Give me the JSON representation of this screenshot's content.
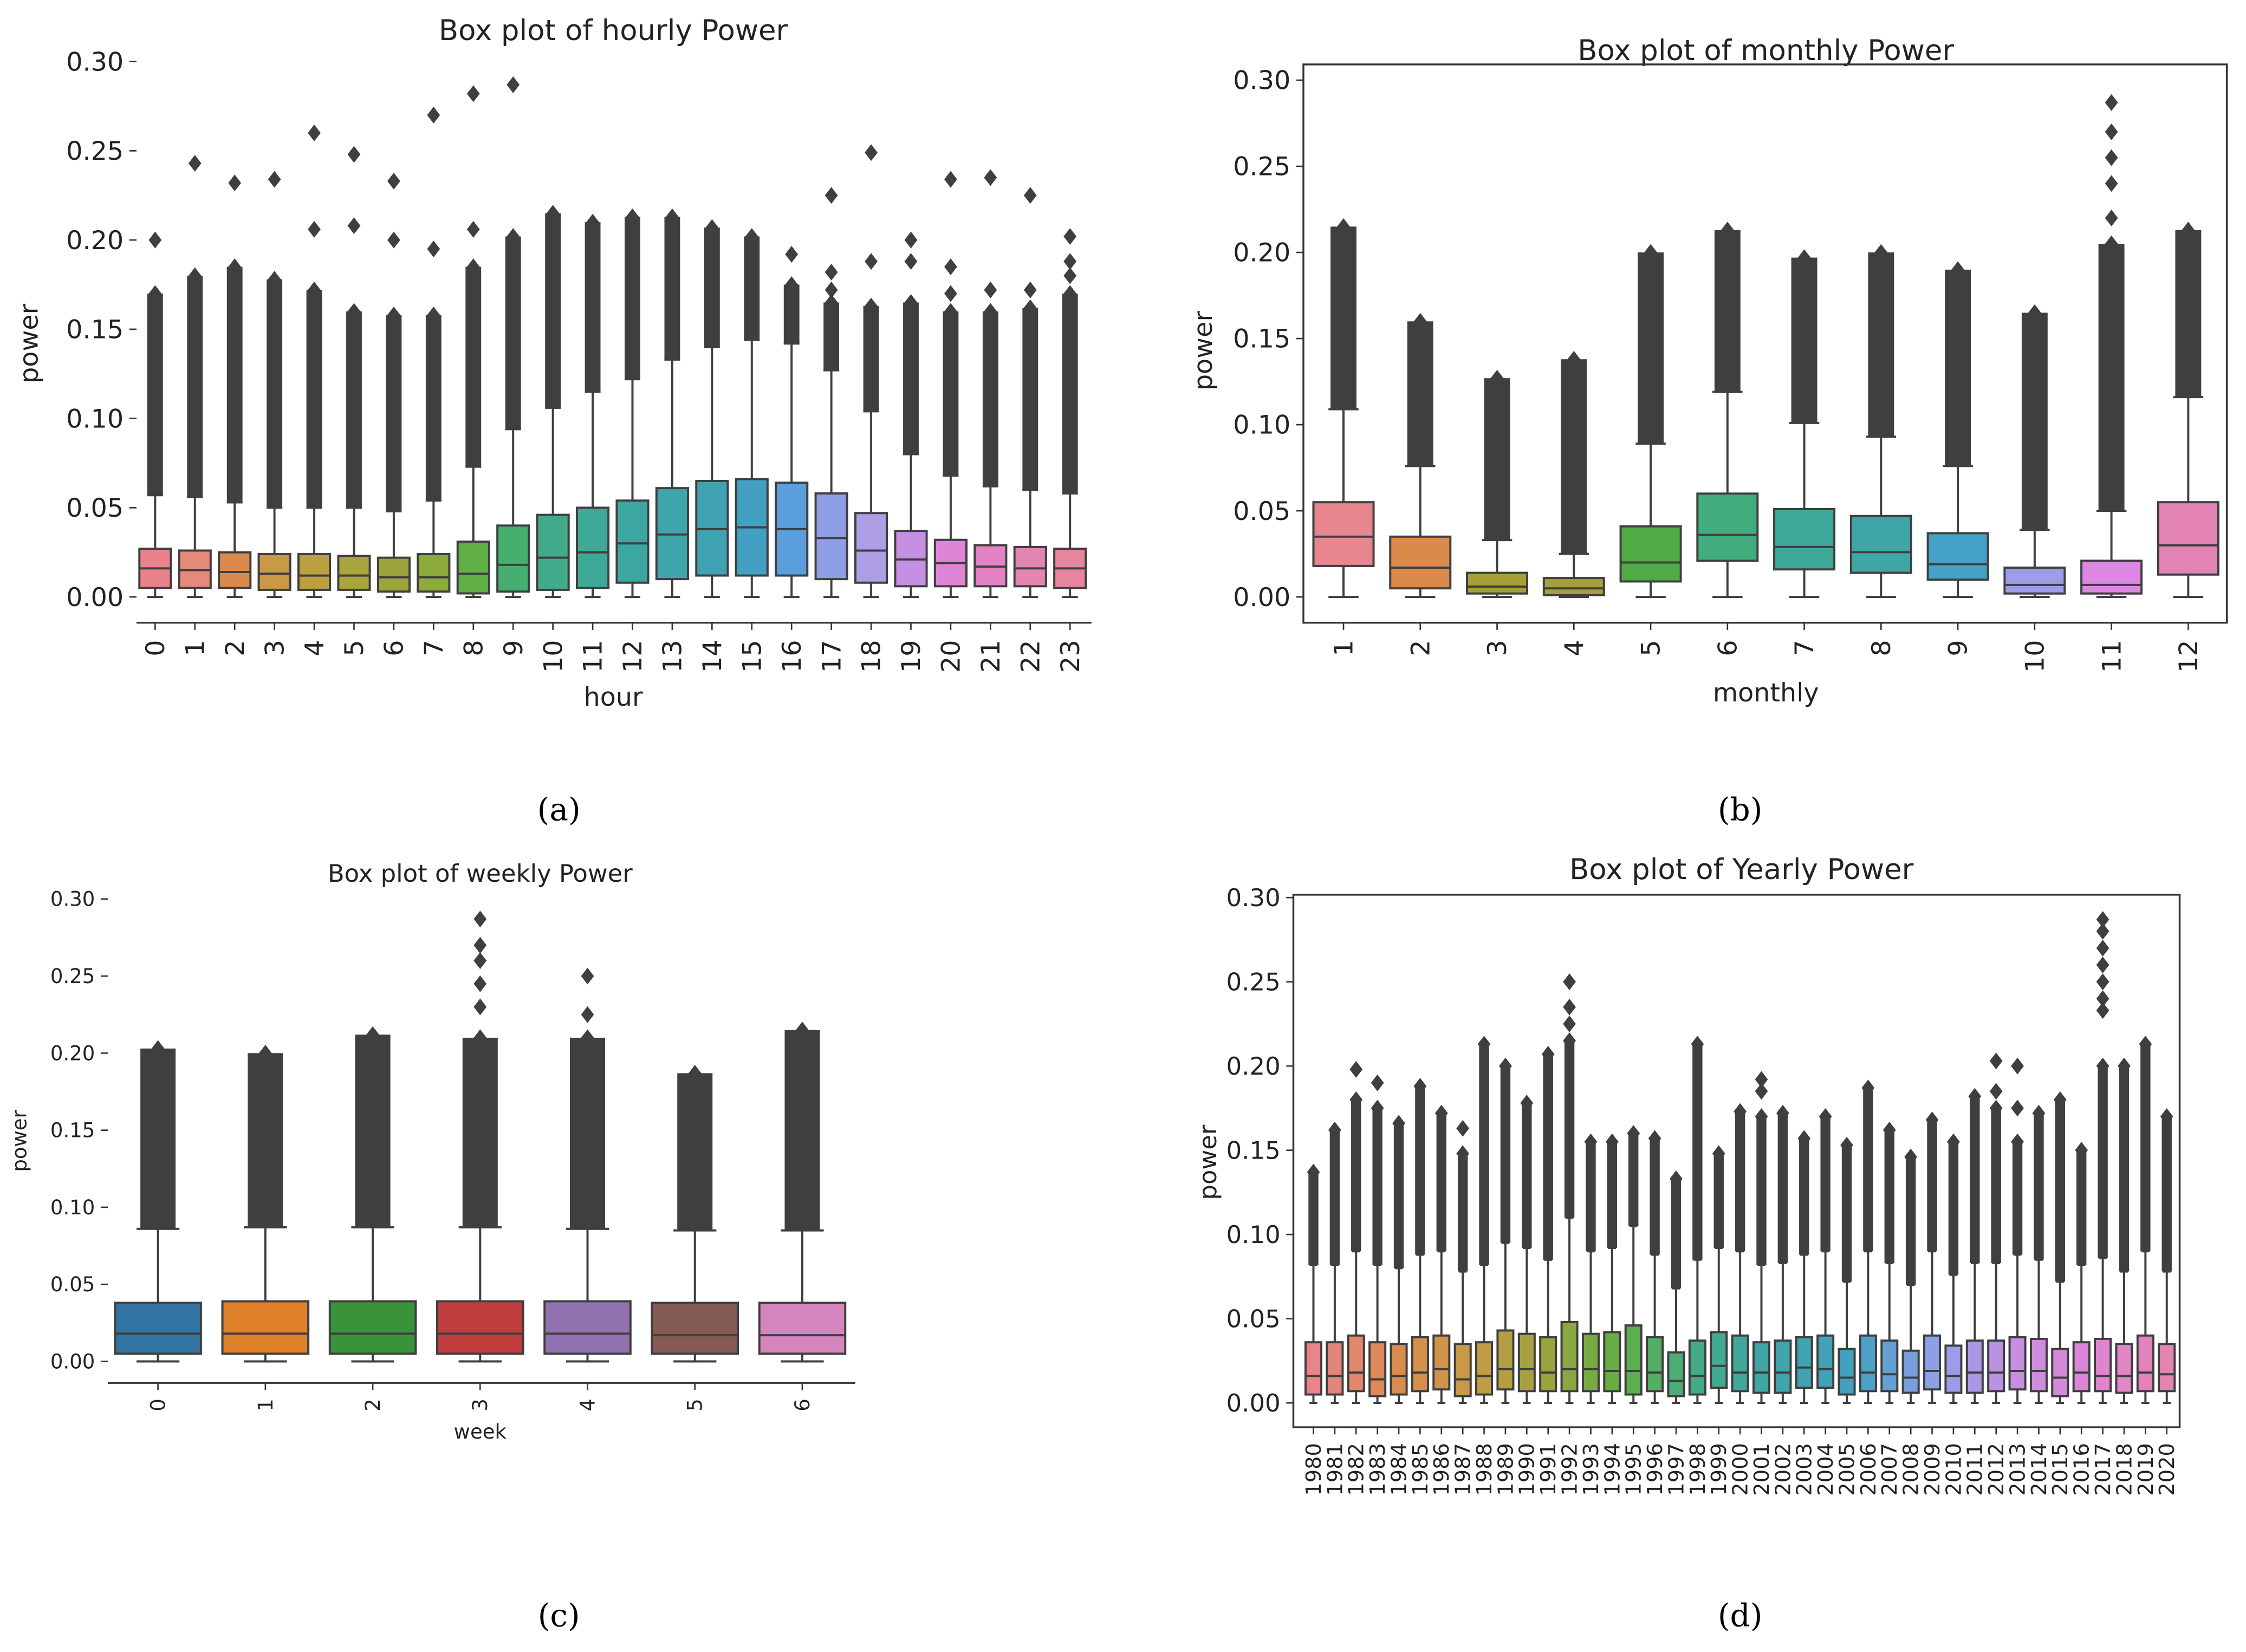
{
  "captions": [
    "(a)",
    "(b)",
    "(c)",
    "(d)"
  ],
  "chart_data": [
    {
      "type": "box",
      "title": "Box plot of hourly Power",
      "xlabel": "hour",
      "ylabel": "power",
      "ylim": [
        0,
        0.3
      ],
      "yticks": [
        "0.00",
        "0.05",
        "0.10",
        "0.15",
        "0.20",
        "0.25",
        "0.30"
      ],
      "categories": [
        "0",
        "1",
        "2",
        "3",
        "4",
        "5",
        "6",
        "7",
        "8",
        "9",
        "10",
        "11",
        "12",
        "13",
        "14",
        "15",
        "16",
        "17",
        "18",
        "19",
        "20",
        "21",
        "22",
        "23"
      ],
      "q1": [
        0.005,
        0.005,
        0.005,
        0.004,
        0.004,
        0.004,
        0.003,
        0.003,
        0.002,
        0.003,
        0.004,
        0.005,
        0.008,
        0.01,
        0.012,
        0.012,
        0.012,
        0.01,
        0.008,
        0.006,
        0.006,
        0.006,
        0.006,
        0.005
      ],
      "median": [
        0.016,
        0.015,
        0.014,
        0.013,
        0.012,
        0.012,
        0.011,
        0.011,
        0.013,
        0.018,
        0.022,
        0.025,
        0.03,
        0.035,
        0.038,
        0.039,
        0.038,
        0.033,
        0.026,
        0.021,
        0.019,
        0.017,
        0.016,
        0.016
      ],
      "q3": [
        0.027,
        0.026,
        0.025,
        0.024,
        0.024,
        0.023,
        0.022,
        0.024,
        0.031,
        0.04,
        0.046,
        0.05,
        0.054,
        0.061,
        0.065,
        0.066,
        0.064,
        0.058,
        0.047,
        0.037,
        0.032,
        0.029,
        0.028,
        0.027
      ],
      "whisker_low": [
        0,
        0,
        0,
        0,
        0,
        0,
        0,
        0,
        0,
        0,
        0,
        0,
        0,
        0,
        0,
        0,
        0,
        0,
        0,
        0,
        0,
        0,
        0,
        0
      ],
      "whisker_high": [
        0.057,
        0.056,
        0.053,
        0.05,
        0.05,
        0.05,
        0.048,
        0.054,
        0.073,
        0.094,
        0.106,
        0.115,
        0.122,
        0.133,
        0.14,
        0.144,
        0.142,
        0.127,
        0.104,
        0.08,
        0.068,
        0.062,
        0.06,
        0.058
      ],
      "flier_max": [
        0.17,
        0.18,
        0.185,
        0.178,
        0.172,
        0.16,
        0.158,
        0.158,
        0.185,
        0.202,
        0.215,
        0.21,
        0.213,
        0.213,
        0.207,
        0.202,
        0.175,
        0.165,
        0.163,
        0.165,
        0.16,
        0.16,
        0.162,
        0.17
      ],
      "outliers": [
        [
          0.2
        ],
        [
          0.243
        ],
        [
          0.232
        ],
        [
          0.234
        ],
        [
          0.206,
          0.26
        ],
        [
          0.208,
          0.248
        ],
        [
          0.2,
          0.233
        ],
        [
          0.195,
          0.27
        ],
        [
          0.206,
          0.282
        ],
        [
          0.287
        ],
        [],
        [],
        [],
        [],
        [],
        [],
        [
          0.192
        ],
        [
          0.172,
          0.182,
          0.225
        ],
        [
          0.188,
          0.249
        ],
        [
          0.188,
          0.2
        ],
        [
          0.17,
          0.185,
          0.234
        ],
        [
          0.172,
          0.235
        ],
        [
          0.172,
          0.225
        ],
        [
          0.18,
          0.188,
          0.202
        ]
      ],
      "colors": [
        "#e8838c",
        "#e48a7a",
        "#db8a4e",
        "#c99a46",
        "#bba042",
        "#a9a53d",
        "#9ba53c",
        "#8daa3c",
        "#5fae46",
        "#46ae6e",
        "#42ab8b",
        "#3ea996",
        "#3ca7a0",
        "#3ea5aa",
        "#40a3b4",
        "#44a0c2",
        "#5a9fdc",
        "#8f9fe6",
        "#ae9ee6",
        "#c58fe2",
        "#de85d7",
        "#e383c5",
        "#e484b1",
        "#e6869e"
      ]
    },
    {
      "type": "box",
      "title": "Box plot of monthly Power",
      "xlabel": "monthly",
      "ylabel": "power",
      "ylim": [
        0,
        0.3
      ],
      "yticks": [
        "0.00",
        "0.05",
        "0.10",
        "0.15",
        "0.20",
        "0.25",
        "0.30"
      ],
      "categories": [
        "1",
        "2",
        "3",
        "4",
        "5",
        "6",
        "7",
        "8",
        "9",
        "10",
        "11",
        "12"
      ],
      "q1": [
        0.018,
        0.005,
        0.002,
        0.001,
        0.009,
        0.021,
        0.016,
        0.014,
        0.01,
        0.002,
        0.002,
        0.013
      ],
      "median": [
        0.035,
        0.017,
        0.006,
        0.005,
        0.02,
        0.036,
        0.029,
        0.026,
        0.019,
        0.007,
        0.007,
        0.03
      ],
      "q3": [
        0.055,
        0.035,
        0.014,
        0.011,
        0.041,
        0.06,
        0.051,
        0.047,
        0.037,
        0.017,
        0.021,
        0.055
      ],
      "whisker_low": [
        0,
        0,
        0,
        0,
        0,
        0,
        0,
        0,
        0,
        0,
        0,
        0
      ],
      "whisker_high": [
        0.109,
        0.076,
        0.033,
        0.025,
        0.089,
        0.119,
        0.101,
        0.093,
        0.076,
        0.039,
        0.05,
        0.116
      ],
      "flier_max": [
        0.215,
        0.16,
        0.127,
        0.138,
        0.2,
        0.213,
        0.197,
        0.2,
        0.19,
        0.165,
        0.205,
        0.213
      ],
      "outliers": [
        [],
        [],
        [],
        [],
        [],
        [],
        [],
        [],
        [],
        [],
        [
          0.22,
          0.24,
          0.255,
          0.27,
          0.287
        ],
        []
      ],
      "colors": [
        "#e7868f",
        "#db8a4b",
        "#a69f3a",
        "#a4a03a",
        "#4fab45",
        "#41ad7e",
        "#3da89a",
        "#3ea7a6",
        "#44a2c6",
        "#9b9ee6",
        "#dd86e3",
        "#e384b4"
      ]
    },
    {
      "type": "box",
      "title": "Box plot of weekly Power",
      "xlabel": "week",
      "ylabel": "power",
      "ylim": [
        0,
        0.3
      ],
      "yticks": [
        "0.00",
        "0.05",
        "0.10",
        "0.15",
        "0.20",
        "0.25",
        "0.30"
      ],
      "categories": [
        "0",
        "1",
        "2",
        "3",
        "4",
        "5",
        "6"
      ],
      "q1": [
        0.005,
        0.005,
        0.005,
        0.005,
        0.005,
        0.005,
        0.005
      ],
      "median": [
        0.018,
        0.018,
        0.018,
        0.018,
        0.018,
        0.017,
        0.017
      ],
      "q3": [
        0.038,
        0.039,
        0.039,
        0.039,
        0.039,
        0.038,
        0.038
      ],
      "whisker_low": [
        0,
        0,
        0,
        0,
        0,
        0,
        0
      ],
      "whisker_high": [
        0.086,
        0.087,
        0.087,
        0.087,
        0.086,
        0.085,
        0.085
      ],
      "flier_max": [
        0.203,
        0.2,
        0.212,
        0.21,
        0.21,
        0.187,
        0.215
      ],
      "outliers": [
        [],
        [],
        [],
        [
          0.23,
          0.245,
          0.26,
          0.27,
          0.287
        ],
        [
          0.225,
          0.25
        ],
        [],
        []
      ],
      "colors": [
        "#3274a1",
        "#e1812c",
        "#3a923a",
        "#c03d3e",
        "#9372b2",
        "#845b53",
        "#d684bd"
      ]
    },
    {
      "type": "box",
      "title": "Box plot of Yearly Power",
      "xlabel": "",
      "ylabel": "power",
      "ylim": [
        -0.015,
        0.3
      ],
      "yticks": [
        "0.00",
        "0.05",
        "0.10",
        "0.15",
        "0.20",
        "0.25",
        "0.30"
      ],
      "categories": [
        "1980",
        "1981",
        "1982",
        "1983",
        "1984",
        "1985",
        "1986",
        "1987",
        "1988",
        "1989",
        "1990",
        "1991",
        "1992",
        "1993",
        "1994",
        "1995",
        "1996",
        "1997",
        "1998",
        "1999",
        "2000",
        "2001",
        "2002",
        "2003",
        "2004",
        "2005",
        "2006",
        "2007",
        "2008",
        "2009",
        "2010",
        "2011",
        "2012",
        "2013",
        "2014",
        "2015",
        "2016",
        "2017",
        "2018",
        "2019",
        "2020"
      ],
      "q1": [
        0.005,
        0.005,
        0.007,
        0.004,
        0.005,
        0.007,
        0.008,
        0.004,
        0.005,
        0.008,
        0.007,
        0.007,
        0.007,
        0.007,
        0.007,
        0.005,
        0.007,
        0.004,
        0.005,
        0.009,
        0.007,
        0.006,
        0.006,
        0.009,
        0.009,
        0.005,
        0.007,
        0.007,
        0.006,
        0.008,
        0.006,
        0.006,
        0.007,
        0.008,
        0.007,
        0.004,
        0.007,
        0.007,
        0.006,
        0.007,
        0.007
      ],
      "median": [
        0.016,
        0.016,
        0.018,
        0.014,
        0.016,
        0.018,
        0.02,
        0.014,
        0.016,
        0.02,
        0.02,
        0.018,
        0.02,
        0.02,
        0.019,
        0.019,
        0.018,
        0.013,
        0.016,
        0.022,
        0.018,
        0.018,
        0.018,
        0.021,
        0.02,
        0.015,
        0.018,
        0.017,
        0.015,
        0.019,
        0.016,
        0.018,
        0.018,
        0.019,
        0.019,
        0.015,
        0.018,
        0.016,
        0.016,
        0.018,
        0.017
      ],
      "q3": [
        0.036,
        0.036,
        0.04,
        0.036,
        0.035,
        0.039,
        0.04,
        0.035,
        0.036,
        0.043,
        0.041,
        0.039,
        0.048,
        0.041,
        0.042,
        0.046,
        0.039,
        0.03,
        0.037,
        0.042,
        0.04,
        0.036,
        0.037,
        0.039,
        0.04,
        0.032,
        0.04,
        0.037,
        0.031,
        0.04,
        0.034,
        0.037,
        0.037,
        0.039,
        0.038,
        0.032,
        0.036,
        0.038,
        0.035,
        0.04,
        0.035
      ],
      "whisker_low": [
        0,
        0,
        0,
        0,
        0,
        0,
        0,
        0,
        0,
        0,
        0,
        0,
        0,
        0,
        0,
        0,
        0,
        0,
        0,
        0,
        0,
        0,
        0,
        0,
        0,
        0,
        0,
        0,
        0,
        0,
        0,
        0,
        0,
        0,
        0,
        0,
        0,
        0,
        0,
        0,
        0
      ],
      "whisker_high": [
        0.082,
        0.082,
        0.09,
        0.082,
        0.08,
        0.088,
        0.09,
        0.078,
        0.082,
        0.095,
        0.092,
        0.085,
        0.11,
        0.09,
        0.092,
        0.105,
        0.088,
        0.068,
        0.085,
        0.092,
        0.09,
        0.082,
        0.083,
        0.088,
        0.09,
        0.072,
        0.09,
        0.083,
        0.07,
        0.09,
        0.076,
        0.083,
        0.083,
        0.088,
        0.085,
        0.072,
        0.082,
        0.086,
        0.078,
        0.09,
        0.078
      ],
      "flier_max": [
        0.137,
        0.162,
        0.18,
        0.175,
        0.166,
        0.188,
        0.172,
        0.148,
        0.213,
        0.2,
        0.178,
        0.207,
        0.215,
        0.155,
        0.155,
        0.16,
        0.157,
        0.133,
        0.213,
        0.148,
        0.173,
        0.17,
        0.172,
        0.157,
        0.17,
        0.153,
        0.187,
        0.162,
        0.146,
        0.168,
        0.155,
        0.182,
        0.175,
        0.155,
        0.172,
        0.18,
        0.15,
        0.2,
        0.2,
        0.213,
        0.17
      ],
      "outliers": [
        [],
        [],
        [
          0.198
        ],
        [
          0.19
        ],
        [],
        [],
        [],
        [
          0.163
        ],
        [],
        [],
        [],
        [],
        [
          0.225,
          0.235,
          0.25
        ],
        [],
        [],
        [],
        [],
        [],
        [],
        [],
        [],
        [
          0.185,
          0.192
        ],
        [],
        [],
        [],
        [],
        [],
        [],
        [],
        [],
        [],
        [],
        [
          0.185,
          0.203
        ],
        [
          0.175,
          0.2
        ],
        [],
        [],
        [],
        [
          0.233,
          0.24,
          0.25,
          0.26,
          0.27,
          0.28,
          0.287
        ],
        [],
        [],
        []
      ],
      "palette_anchors": [
        "#e8838c",
        "#db8a4e",
        "#c99a46",
        "#9ba53c",
        "#5fae46",
        "#42ab8b",
        "#3ea5aa",
        "#44a0c2",
        "#8f9fe6",
        "#c58fe2",
        "#de85d7",
        "#e484b1"
      ]
    }
  ]
}
